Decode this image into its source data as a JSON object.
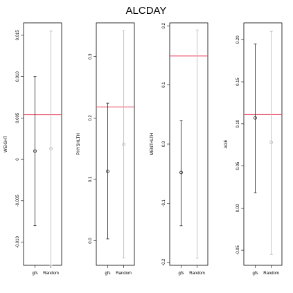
{
  "title": "ALCDAY",
  "colors": {
    "gfs": "#333333",
    "random": "#bdbdbd",
    "reference_line": "#e8506a",
    "frame": "#000000"
  },
  "chart_data": [
    {
      "type": "errorbar",
      "ylabel": "WEIGHT",
      "categories": [
        "gfs",
        "Random"
      ],
      "ylim": [
        -0.0128,
        0.0165
      ],
      "yticks": [
        -0.01,
        -0.005,
        0,
        0.005,
        0.01,
        0.015
      ],
      "ytick_labels": [
        "-0.010",
        "-0.005",
        "0",
        "0.005",
        "0.010",
        "0.015"
      ],
      "reference_line": 0.0054,
      "series": [
        {
          "category": "gfs",
          "point": 0.001,
          "low": -0.008,
          "high": 0.01,
          "marker": true
        },
        {
          "category": "Random",
          "point": 0.0013,
          "low": -0.0128,
          "high": 0.0155,
          "marker": true
        }
      ]
    },
    {
      "type": "errorbar",
      "ylabel": "PHYSHLTH",
      "categories": [
        "gfs",
        "Random"
      ],
      "ylim": [
        -0.04,
        0.355
      ],
      "yticks": [
        0.0,
        0.1,
        0.2,
        0.3
      ],
      "ytick_labels": [
        "0.0",
        "0.1",
        "0.2",
        "0.3"
      ],
      "reference_line": 0.218,
      "series": [
        {
          "category": "gfs",
          "point": 0.113,
          "low": 0.003,
          "high": 0.224,
          "marker": true
        },
        {
          "category": "Random",
          "point": 0.157,
          "low": -0.028,
          "high": 0.342,
          "marker": true
        }
      ]
    },
    {
      "type": "errorbar",
      "ylabel": "MENTHLTH",
      "categories": [
        "gfs",
        "Random"
      ],
      "ylim": [
        -0.205,
        0.205
      ],
      "yticks": [
        -0.2,
        -0.1,
        0.0,
        0.1,
        0.2
      ],
      "ytick_labels": [
        "-0.2",
        "-0.1",
        "0.0",
        "0.1",
        "0.2"
      ],
      "reference_line": 0.149,
      "series": [
        {
          "category": "gfs",
          "point": -0.048,
          "low": -0.138,
          "high": 0.04,
          "marker": true
        },
        {
          "category": "Random",
          "point": 0.0,
          "low": -0.193,
          "high": 0.193,
          "marker": false
        }
      ]
    },
    {
      "type": "errorbar",
      "ylabel": "AGE",
      "categories": [
        "gfs",
        "Random"
      ],
      "ylim": [
        -0.068,
        0.22
      ],
      "yticks": [
        -0.05,
        0.0,
        0.05,
        0.1,
        0.15,
        0.2
      ],
      "ytick_labels": [
        "-0.05",
        "0.00",
        "0.05",
        "0.10",
        "0.15",
        "0.20"
      ],
      "reference_line": 0.111,
      "series": [
        {
          "category": "gfs",
          "point": 0.107,
          "low": 0.018,
          "high": 0.195,
          "marker": true
        },
        {
          "category": "Random",
          "point": 0.078,
          "low": -0.055,
          "high": 0.21,
          "marker": true
        }
      ]
    }
  ]
}
